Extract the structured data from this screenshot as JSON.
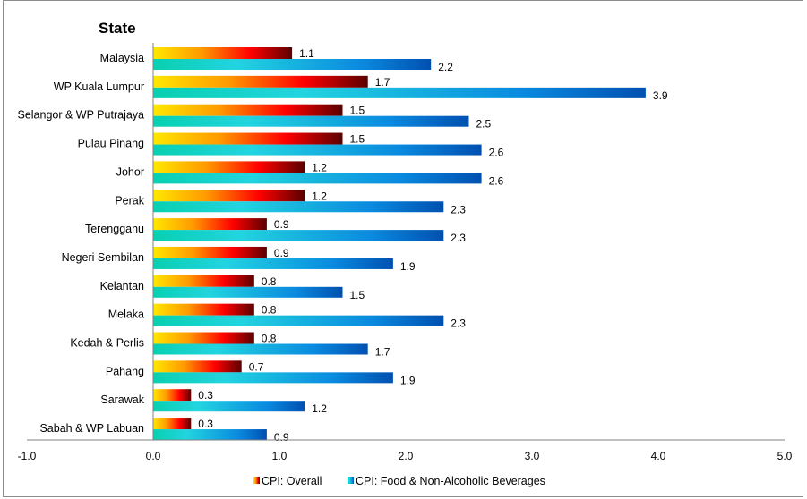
{
  "chart_data": {
    "type": "bar",
    "orientation": "horizontal",
    "title": "",
    "ylabel": "State",
    "xlabel": "",
    "xlim": [
      -1.0,
      5.0
    ],
    "xticks": [
      "-1.0",
      "0.0",
      "1.0",
      "2.0",
      "3.0",
      "4.0",
      "5.0"
    ],
    "grid": false,
    "legend_position": "bottom",
    "categories": [
      "Malaysia",
      "WP Kuala Lumpur",
      "Selangor & WP Putrajaya",
      "Pulau Pinang",
      "Johor",
      "Perak",
      "Terengganu",
      "Negeri Sembilan",
      "Kelantan",
      "Melaka",
      "Kedah & Perlis",
      "Pahang",
      "Sarawak",
      "Sabah & WP Labuan"
    ],
    "series": [
      {
        "name": "CPI: Overall",
        "colors": [
          "#ffe800",
          "#ff9a00",
          "#ff0000",
          "#5a0000"
        ],
        "values": [
          1.1,
          1.7,
          1.5,
          1.5,
          1.2,
          1.2,
          0.9,
          0.9,
          0.8,
          0.8,
          0.8,
          0.7,
          0.3,
          0.3
        ]
      },
      {
        "name": "CPI: Food & Non-Alcoholic Beverages",
        "colors": [
          "#08d0b0",
          "#22d4e0",
          "#0a8ae0",
          "#0050b0"
        ],
        "values": [
          2.2,
          3.9,
          2.5,
          2.6,
          2.6,
          2.3,
          2.3,
          1.9,
          1.5,
          2.3,
          1.7,
          1.9,
          1.2,
          0.9
        ]
      }
    ]
  }
}
